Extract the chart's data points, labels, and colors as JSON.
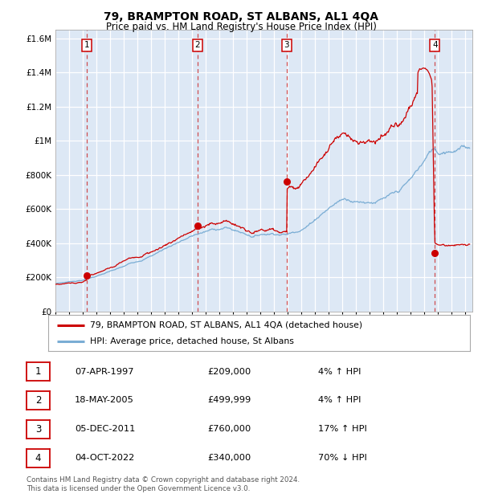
{
  "title": "79, BRAMPTON ROAD, ST ALBANS, AL1 4QA",
  "subtitle": "Price paid vs. HM Land Registry's House Price Index (HPI)",
  "background_color": "#dde8f5",
  "ylim": [
    0,
    1650000
  ],
  "yticks": [
    0,
    200000,
    400000,
    600000,
    800000,
    1000000,
    1200000,
    1400000,
    1600000
  ],
  "ytick_labels": [
    "£0",
    "£200K",
    "£400K",
    "£600K",
    "£800K",
    "£1M",
    "£1.2M",
    "£1.4M",
    "£1.6M"
  ],
  "xlim_start": 1995.0,
  "xlim_end": 2025.5,
  "sale_dates": [
    1997.27,
    2005.38,
    2011.92,
    2022.76
  ],
  "sale_prices": [
    209000,
    499999,
    760000,
    340000
  ],
  "sale_labels": [
    "1",
    "2",
    "3",
    "4"
  ],
  "red_line_color": "#cc0000",
  "blue_line_color": "#7aadd4",
  "sale_dot_color": "#cc0000",
  "dashed_line_color": "#cc3333",
  "legend_entries": [
    "79, BRAMPTON ROAD, ST ALBANS, AL1 4QA (detached house)",
    "HPI: Average price, detached house, St Albans"
  ],
  "table_rows": [
    [
      "1",
      "07-APR-1997",
      "£209,000",
      "4% ↑ HPI"
    ],
    [
      "2",
      "18-MAY-2005",
      "£499,999",
      "4% ↑ HPI"
    ],
    [
      "3",
      "05-DEC-2011",
      "£760,000",
      "17% ↑ HPI"
    ],
    [
      "4",
      "04-OCT-2022",
      "£340,000",
      "70% ↓ HPI"
    ]
  ],
  "footer": "Contains HM Land Registry data © Crown copyright and database right 2024.\nThis data is licensed under the Open Government Licence v3.0."
}
